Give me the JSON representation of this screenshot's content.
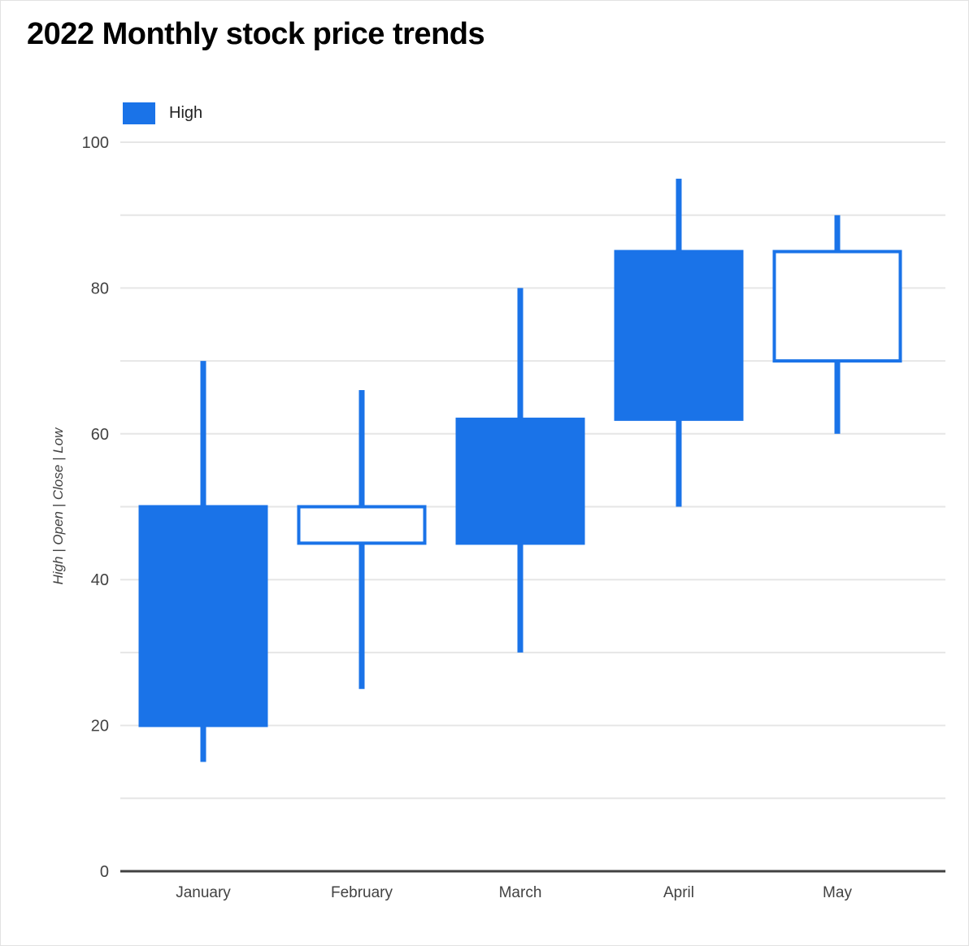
{
  "page": {
    "title": "2022 Monthly stock price trends"
  },
  "legend": {
    "items": [
      {
        "label": "High",
        "color": "#1a73e8"
      }
    ]
  },
  "colors": {
    "primary": "#1a73e8",
    "grid": "#e6e6e6",
    "axis": "#424242",
    "text": "#424242",
    "title": "#000000",
    "hollow_fill": "#ffffff"
  },
  "chart_data": {
    "type": "candlestick",
    "title": "2022 Monthly stock price trends",
    "xlabel": "",
    "ylabel": "High | Open | Close | Low",
    "ylim": [
      0,
      100
    ],
    "ytick_labels": [
      0,
      20,
      40,
      60,
      80,
      100
    ],
    "gridline_step": 10,
    "grid": true,
    "legend_position": "top-left",
    "legend_entries": [
      "High"
    ],
    "categories": [
      "January",
      "February",
      "March",
      "April",
      "May"
    ],
    "series": [
      {
        "category": "January",
        "low": 15,
        "open": 50,
        "close": 20,
        "high": 70,
        "direction": "falling",
        "filled": true
      },
      {
        "category": "February",
        "low": 25,
        "open": 45,
        "close": 50,
        "high": 66,
        "direction": "rising",
        "filled": false
      },
      {
        "category": "March",
        "low": 30,
        "open": 62,
        "close": 45,
        "high": 80,
        "direction": "falling",
        "filled": true
      },
      {
        "category": "April",
        "low": 50,
        "open": 85,
        "close": 62,
        "high": 95,
        "direction": "falling",
        "filled": true
      },
      {
        "category": "May",
        "low": 60,
        "open": 70,
        "close": 85,
        "high": 90,
        "direction": "rising",
        "filled": false
      }
    ]
  }
}
